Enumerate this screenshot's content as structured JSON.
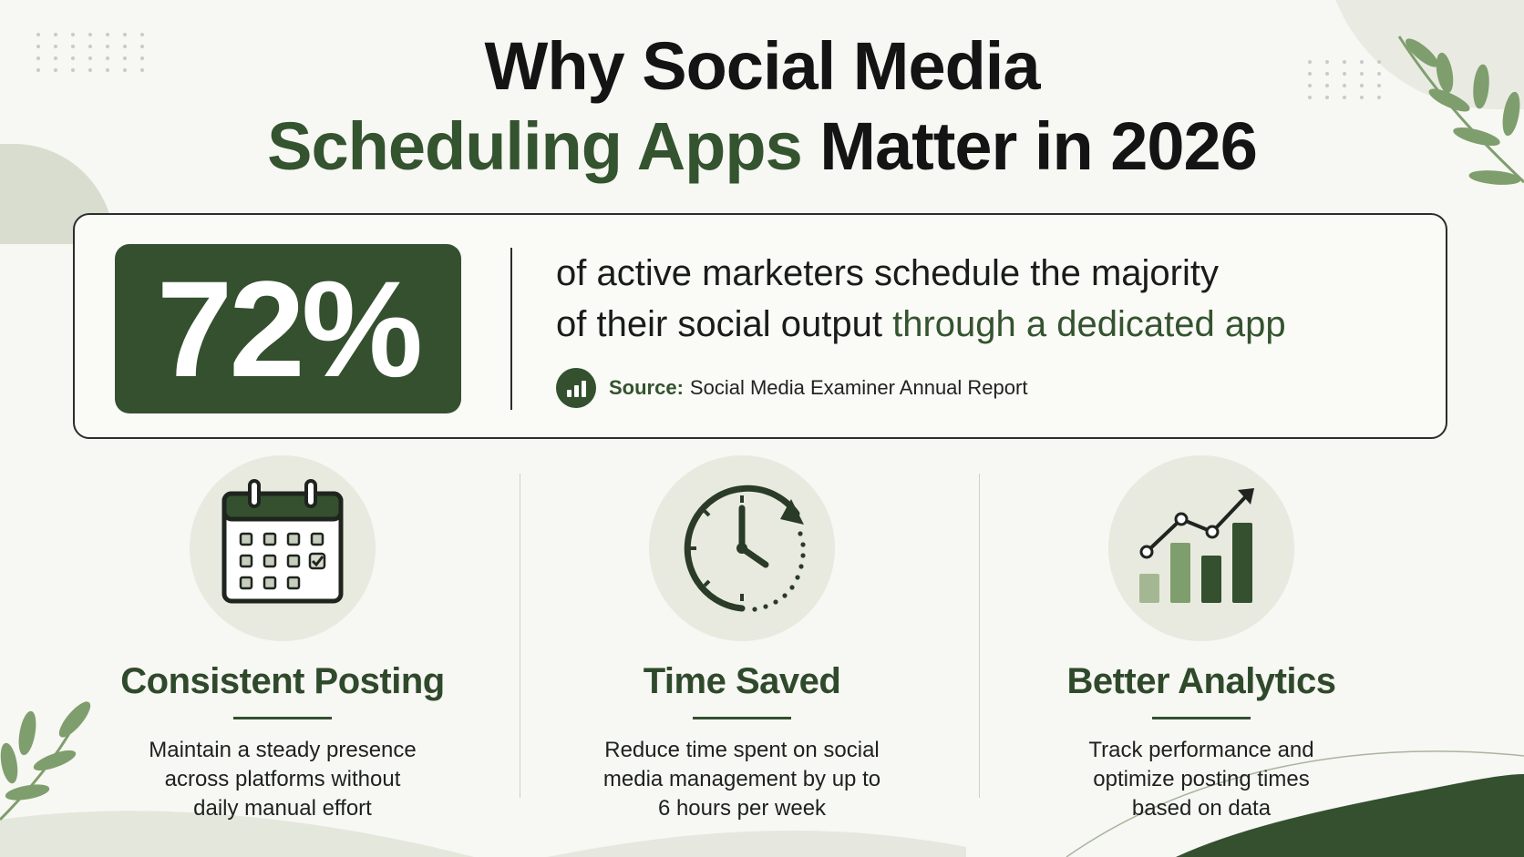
{
  "title": {
    "line1": "Why Social Media",
    "line2_accent": "Scheduling Apps",
    "line2_rest": " Matter in 2026"
  },
  "stat": {
    "value": "72%",
    "text_line1": "of active marketers schedule the majority",
    "text_line2_plain": "of their social output ",
    "text_line2_accent": "through a dedicated app",
    "source_label": "Source:",
    "source_text": "Social Media Examiner Annual Report",
    "source_icon": "bar-chart-icon"
  },
  "features": [
    {
      "icon": "calendar-icon",
      "title": "Consistent Posting",
      "desc_lines": [
        "Maintain a steady presence",
        "across platforms without",
        "daily manual effort"
      ]
    },
    {
      "icon": "clock-icon",
      "title": "Time Saved",
      "desc_lines": [
        "Reduce time spent on social",
        "media management by up to",
        "6 hours per week"
      ]
    },
    {
      "icon": "growth-chart-icon",
      "title": "Better Analytics",
      "desc_lines": [
        "Track performance and",
        "optimize posting times",
        "based on data"
      ]
    }
  ],
  "colors": {
    "accent": "#34532f",
    "accent_dark": "#34502f",
    "leaf": "#7f9e6d",
    "background": "#f7f7f3"
  }
}
